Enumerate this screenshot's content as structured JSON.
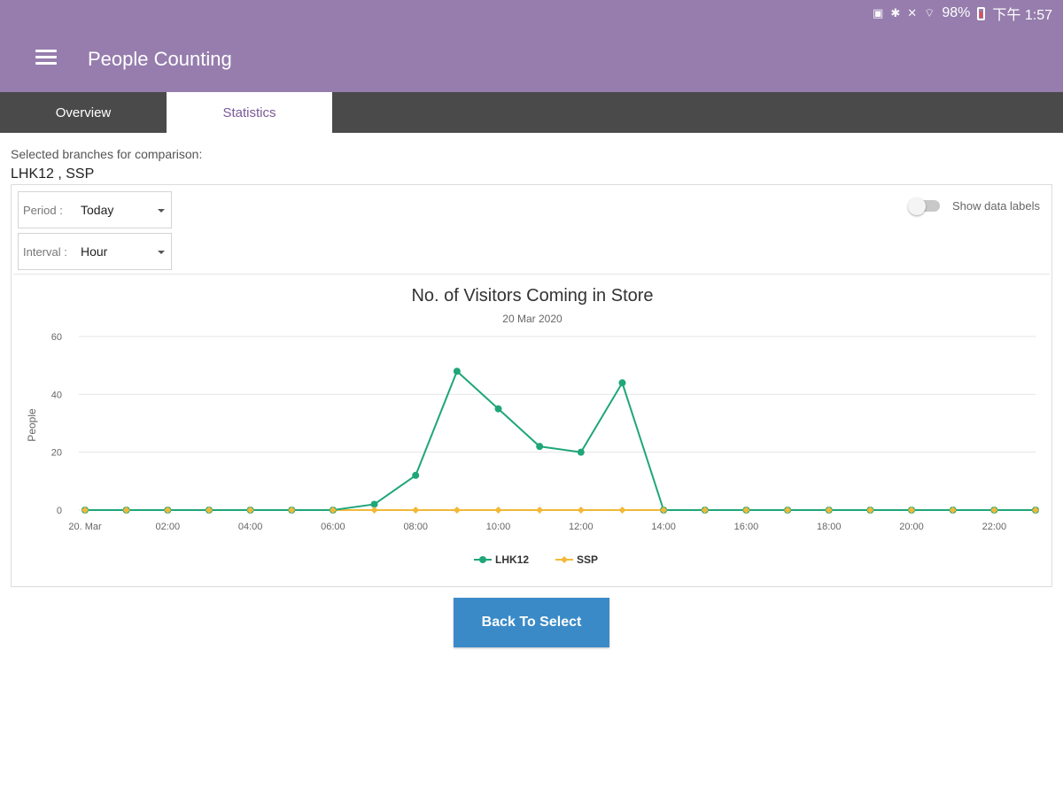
{
  "status_bar": {
    "battery": "98%",
    "time": "下午 1:57"
  },
  "app": {
    "title": "People Counting",
    "accent": "#967dad"
  },
  "tabs": [
    {
      "label": "Overview",
      "active": false
    },
    {
      "label": "Statistics",
      "active": true
    }
  ],
  "selection": {
    "label": "Selected branches for comparison:",
    "value": "LHK12 , SSP"
  },
  "controls": {
    "period": {
      "label": "Period :",
      "value": "Today"
    },
    "interval": {
      "label": "Interval :",
      "value": "Hour"
    },
    "data_labels_toggle": {
      "label": "Show data labels",
      "on": false
    }
  },
  "chart_data": {
    "type": "line",
    "title": "No. of Visitors Coming in Store",
    "subtitle": "20 Mar 2020",
    "ylabel": "People",
    "xlabel": "",
    "ylim": [
      0,
      60
    ],
    "yticks": [
      0,
      20,
      40,
      60
    ],
    "x_tick_labels": [
      "20. Mar",
      "02:00",
      "04:00",
      "06:00",
      "08:00",
      "10:00",
      "12:00",
      "14:00",
      "16:00",
      "18:00",
      "20:00",
      "22:00"
    ],
    "x": [
      0,
      1,
      2,
      3,
      4,
      5,
      6,
      7,
      8,
      9,
      10,
      11,
      12,
      13,
      14,
      15,
      16,
      17,
      18,
      19,
      20,
      21,
      22,
      23
    ],
    "grid": true,
    "legend": "bottom-center",
    "series": [
      {
        "name": "LHK12",
        "color": "#1fa67a",
        "marker": "circle",
        "values": [
          0,
          0,
          0,
          0,
          0,
          0,
          0,
          2,
          12,
          48,
          35,
          22,
          20,
          44,
          0,
          0,
          0,
          0,
          0,
          0,
          0,
          0,
          0,
          0
        ]
      },
      {
        "name": "SSP",
        "color": "#f2b938",
        "marker": "diamond",
        "values": [
          0,
          0,
          0,
          0,
          0,
          0,
          0,
          0,
          0,
          0,
          0,
          0,
          0,
          0,
          0,
          0,
          0,
          0,
          0,
          0,
          0,
          0,
          0,
          0
        ]
      }
    ]
  },
  "actions": {
    "back_label": "Back To Select"
  }
}
